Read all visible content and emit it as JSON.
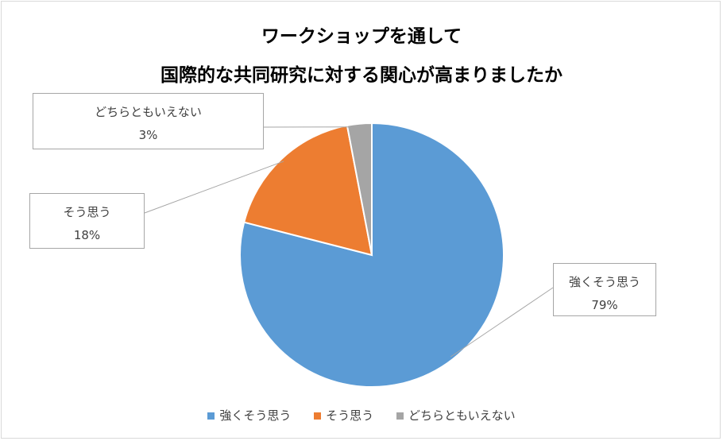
{
  "chart_data": {
    "type": "pie",
    "title_line1": "ワークショップを通して",
    "title_line2": "国際的な共同研究に対する関心が高まりましたか",
    "slices": [
      {
        "label": "強くそう思う",
        "value": 79,
        "pct_label": "79%",
        "color": "#5b9bd5"
      },
      {
        "label": "そう思う",
        "value": 18,
        "pct_label": "18%",
        "color": "#ed7d31"
      },
      {
        "label": "どちらともいえない",
        "value": 3,
        "pct_label": "3%",
        "color": "#a5a5a5"
      }
    ],
    "legend_position": "bottom",
    "start_angle": "12 o'clock",
    "direction": "clockwise"
  }
}
